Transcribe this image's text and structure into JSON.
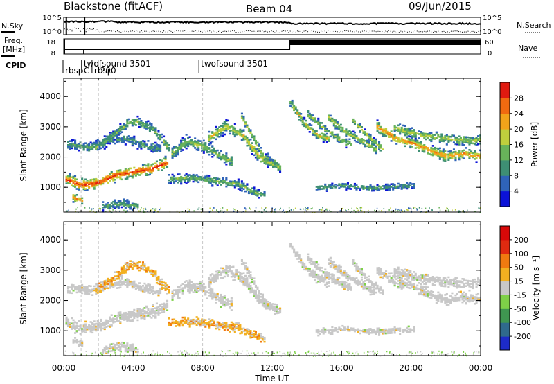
{
  "header": {
    "station": "Blackstone (fitACF)",
    "beam": "Beam 04",
    "date": "09/Jun/2015"
  },
  "top_panels": {
    "nsky_label": "N.Sky",
    "nsearch_label": "N.Search",
    "nsky_ticks": [
      "10^5",
      "10^0"
    ],
    "nsearch_ticks": [
      "10^5",
      "10^0"
    ],
    "freq_label_1": "Freq.",
    "freq_label_2": "[MHz]",
    "freq_ticks": [
      "18",
      "8"
    ],
    "nave_label": "Nave",
    "nave_ticks": [
      "60",
      "0"
    ],
    "cpid_label": "CPID",
    "cpid_entries": [
      {
        "text": "twofsound 3501",
        "hour": 1.15,
        "row": 0
      },
      {
        "text": "rbsp",
        "hour": 0.08,
        "row": 1
      },
      {
        "text": "C",
        "hour": 1.15,
        "row": 1
      },
      {
        "text": "rbsp",
        "hour": 1.75,
        "row": 1
      },
      {
        "text": "200",
        "hour": 2.1,
        "row": 1
      },
      {
        "text": "twofsound 3501",
        "hour": 7.9,
        "row": 0
      }
    ]
  },
  "chart_data": [
    {
      "type": "heatmap",
      "name": "power",
      "xlabel": "",
      "ylabel": "Slant Range [km]",
      "colorbar_label": "Power [dB]",
      "xlim": [
        0,
        24
      ],
      "ylim": [
        180,
        4600
      ],
      "yticks": [
        1000,
        2000,
        3000,
        4000
      ],
      "colorbar_ticks": [
        "4",
        "8",
        "12",
        "16",
        "20",
        "24",
        "28"
      ],
      "colors": [
        "#0b12d8",
        "#2f63b8",
        "#3e8f74",
        "#68b35a",
        "#bfcf3d",
        "#f2a31a",
        "#f06a10",
        "#e01a10"
      ]
    },
    {
      "type": "heatmap",
      "name": "velocity",
      "xlabel": "Time UT",
      "ylabel": "Slant Range [km]",
      "colorbar_label": "Velocity [m s⁻¹]",
      "xlim": [
        0,
        24
      ],
      "ylim": [
        180,
        4600
      ],
      "yticks": [
        1000,
        2000,
        3000,
        4000
      ],
      "xticks": [
        "00:00",
        "04:00",
        "08:00",
        "12:00",
        "16:00",
        "20:00",
        "00:00"
      ],
      "colorbar_ticks": [
        "200",
        "100",
        "50",
        "15",
        "-15",
        "-50",
        "-100",
        "-200"
      ],
      "colors": [
        "#1d2bc8",
        "#2f6a8c",
        "#3f9650",
        "#7ed048",
        "#c8c8c8",
        "#f2b020",
        "#f07a10",
        "#e02a10",
        "#d80808"
      ]
    }
  ],
  "bands": [
    {
      "pts": [
        [
          0.1,
          1250
        ],
        [
          1,
          1050
        ],
        [
          2,
          1150
        ],
        [
          3,
          1400
        ],
        [
          4,
          1500
        ],
        [
          5,
          1600
        ],
        [
          5.9,
          1800
        ]
      ],
      "w": 230,
      "pw": 0.9,
      "vel": "gray"
    },
    {
      "pts": [
        [
          0.2,
          2400
        ],
        [
          1.5,
          2300
        ],
        [
          2.5,
          2500
        ],
        [
          3.5,
          2600
        ],
        [
          4.5,
          2400
        ],
        [
          5.5,
          2250
        ]
      ],
      "w": 200,
      "pw": 0.35,
      "vel": "gray"
    },
    {
      "pts": [
        [
          1.8,
          2300
        ],
        [
          2.8,
          2700
        ],
        [
          3.6,
          3100
        ],
        [
          4.2,
          3150
        ],
        [
          5,
          2950
        ],
        [
          6,
          2300
        ]
      ],
      "w": 190,
      "pw": 0.45,
      "vel": "orange"
    },
    {
      "pts": [
        [
          6.2,
          2100
        ],
        [
          7,
          2500
        ],
        [
          8,
          2350
        ],
        [
          9,
          2000
        ],
        [
          9.6,
          1850
        ]
      ],
      "w": 230,
      "pw": 0.5,
      "vel": "gray"
    },
    {
      "pts": [
        [
          6,
          1250
        ],
        [
          7.5,
          1300
        ],
        [
          9,
          1150
        ],
        [
          10,
          1100
        ],
        [
          10.8,
          850
        ],
        [
          11.5,
          700
        ]
      ],
      "w": 170,
      "pw": 0.45,
      "vel": "orange"
    },
    {
      "pts": [
        [
          8.3,
          2600
        ],
        [
          9.3,
          3000
        ],
        [
          10.3,
          2700
        ],
        [
          11.2,
          2000
        ],
        [
          12.2,
          1750
        ]
      ],
      "w": 230,
      "pw": 0.6,
      "vel": "gray"
    },
    {
      "pts": [
        [
          10.2,
          3300
        ],
        [
          10.8,
          2700
        ],
        [
          11.6,
          1850
        ],
        [
          12.4,
          1650
        ]
      ],
      "w": 150,
      "pw": 0.55,
      "vel": "gray"
    },
    {
      "pts": [
        [
          13,
          3800
        ],
        [
          13.8,
          3100
        ],
        [
          14.6,
          2700
        ],
        [
          15.2,
          2600
        ]
      ],
      "w": 180,
      "pw": 0.55,
      "vel": "gray"
    },
    {
      "pts": [
        [
          14,
          3400
        ],
        [
          15,
          2900
        ],
        [
          16,
          2500
        ],
        [
          16.5,
          2400
        ]
      ],
      "w": 160,
      "pw": 0.5,
      "vel": "gray"
    },
    {
      "pts": [
        [
          15.2,
          3300
        ],
        [
          16.2,
          2800
        ],
        [
          17.2,
          2500
        ],
        [
          18,
          2200
        ]
      ],
      "w": 170,
      "pw": 0.55,
      "vel": "gray"
    },
    {
      "pts": [
        [
          16.6,
          3200
        ],
        [
          17.6,
          2600
        ],
        [
          18.4,
          2200
        ]
      ],
      "w": 150,
      "pw": 0.55,
      "vel": "gray"
    },
    {
      "pts": [
        [
          18,
          3000
        ],
        [
          19,
          2600
        ],
        [
          20,
          2450
        ],
        [
          21,
          2200
        ],
        [
          22,
          2000
        ],
        [
          23,
          2100
        ],
        [
          24,
          2000
        ]
      ],
      "w": 210,
      "pw": 0.75,
      "vel": "gray"
    },
    {
      "pts": [
        [
          19,
          2950
        ],
        [
          20.5,
          2700
        ],
        [
          22,
          2600
        ],
        [
          23.5,
          2500
        ],
        [
          24,
          2600
        ]
      ],
      "w": 200,
      "pw": 0.55,
      "vel": "gray"
    },
    {
      "pts": [
        [
          14.5,
          950
        ],
        [
          16,
          1050
        ],
        [
          17.5,
          950
        ],
        [
          19,
          1000
        ],
        [
          20.2,
          1050
        ]
      ],
      "w": 130,
      "pw": 0.35,
      "vel": "gray"
    },
    {
      "pts": [
        [
          2.2,
          350
        ],
        [
          3.3,
          450
        ],
        [
          4.3,
          350
        ]
      ],
      "w": 170,
      "pw": 0.4,
      "vel": "gray"
    },
    {
      "pts": [
        [
          0.5,
          650
        ],
        [
          1,
          550
        ]
      ],
      "w": 150,
      "pw": 0.8,
      "vel": "gray"
    }
  ]
}
